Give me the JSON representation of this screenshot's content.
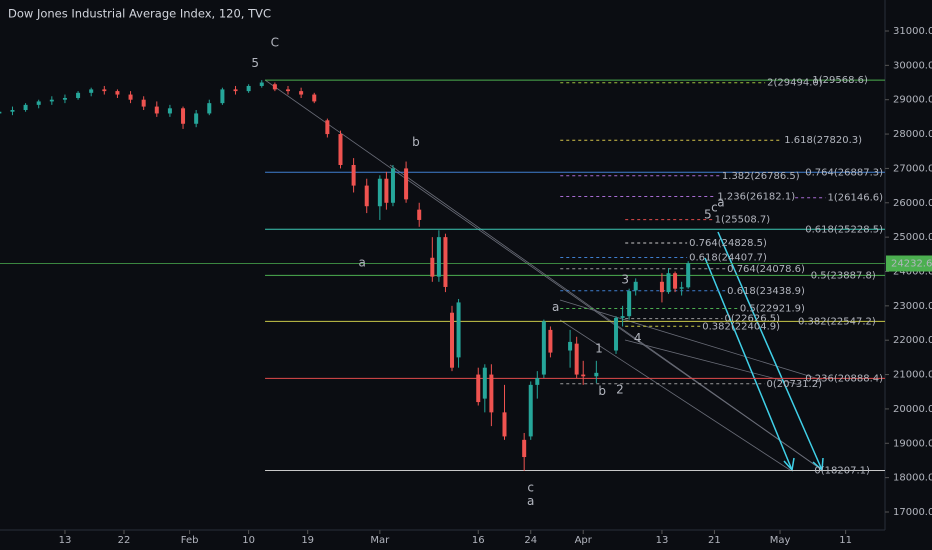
{
  "chart_data": {
    "type": "candlestick",
    "title": "Dow Jones Industrial Average Index, 120, TVC",
    "x": [
      3,
      5,
      7,
      9,
      11,
      13,
      15,
      17,
      19,
      21,
      23,
      25,
      27,
      29,
      31,
      33,
      35,
      37,
      39,
      41,
      43,
      45,
      47,
      49,
      51,
      53,
      55,
      57,
      59,
      61,
      62,
      63,
      65,
      67,
      69,
      70,
      71,
      72,
      73,
      76,
      77,
      78,
      80,
      83,
      84,
      85,
      86,
      87,
      90,
      91,
      92,
      94,
      97,
      98,
      99,
      100,
      104,
      105,
      106,
      107,
      108
    ],
    "open": [
      28600,
      28650,
      28700,
      28850,
      28950,
      29000,
      29050,
      29200,
      29300,
      29250,
      29150,
      29000,
      28800,
      28600,
      28750,
      28300,
      28600,
      28900,
      29300,
      29250,
      29400,
      29450,
      29300,
      29250,
      29150,
      28400,
      28000,
      27100,
      26500,
      25900,
      26700,
      26000,
      27000,
      25800,
      24400,
      23850,
      25000,
      22800,
      21500,
      21000,
      20300,
      21000,
      19900,
      19100,
      19200,
      20700,
      21000,
      22300,
      21700,
      21900,
      21000,
      20950,
      21700,
      22650,
      22700,
      23450,
      23700,
      23400,
      23950,
      23500,
      23540
    ],
    "high": [
      28750,
      28800,
      28900,
      29000,
      29100,
      29150,
      29250,
      29350,
      29400,
      29300,
      29250,
      29100,
      28950,
      28850,
      28800,
      28700,
      29000,
      29350,
      29400,
      29450,
      29570,
      29500,
      29400,
      29350,
      29200,
      28450,
      28100,
      27300,
      26700,
      26800,
      26900,
      27100,
      27200,
      26000,
      25000,
      25200,
      25100,
      23000,
      23200,
      21200,
      21300,
      21300,
      20700,
      19300,
      20800,
      21100,
      22600,
      22400,
      22300,
      22100,
      21400,
      21400,
      22700,
      23000,
      23500,
      23800,
      23950,
      24100,
      24000,
      23700,
      24300
    ],
    "low": [
      28500,
      28550,
      28650,
      28750,
      28850,
      28900,
      29000,
      29100,
      29150,
      29050,
      28900,
      28700,
      28500,
      28500,
      28150,
      28200,
      28550,
      28850,
      29150,
      29200,
      29350,
      29250,
      29150,
      29050,
      28900,
      27900,
      27000,
      26300,
      25700,
      25500,
      25800,
      25900,
      26000,
      25300,
      23700,
      23700,
      23400,
      21100,
      21200,
      20100,
      19900,
      19500,
      19100,
      18200,
      19100,
      20300,
      20900,
      21500,
      21200,
      20900,
      20700,
      20750,
      21600,
      22400,
      22600,
      23300,
      23100,
      23350,
      23400,
      23300,
      23500
    ],
    "close": [
      28650,
      28700,
      28850,
      28950,
      29000,
      29050,
      29200,
      29300,
      29250,
      29150,
      29000,
      28800,
      28600,
      28750,
      28300,
      28600,
      28900,
      29300,
      29250,
      29400,
      29500,
      29300,
      29250,
      29150,
      28950,
      28000,
      27100,
      26500,
      25900,
      26700,
      26000,
      27000,
      26100,
      25500,
      23850,
      25000,
      23550,
      21200,
      23100,
      20200,
      21200,
      19900,
      19200,
      18600,
      20700,
      20900,
      22550,
      21640,
      21950,
      21000,
      20950,
      21050,
      22650,
      22700,
      23430,
      23700,
      23400,
      23950,
      23500,
      23540,
      24240
    ],
    "up_color": "#26a69a",
    "down_color": "#ef5350",
    "xlim": [
      3.1,
      138
    ],
    "ylim": [
      16476,
      31902
    ],
    "xticks": [
      13,
      22,
      {
        "value": 32,
        "label": "Feb"
      },
      {
        "value": 41,
        "label": "10"
      },
      {
        "value": 50,
        "label": "19"
      },
      {
        "value": 61,
        "label": "Mar"
      },
      {
        "value": 76,
        "label": "16"
      },
      {
        "value": 84,
        "label": "24"
      },
      {
        "value": 92,
        "label": "Apr"
      },
      {
        "value": 104,
        "label": "13"
      },
      {
        "value": 112,
        "label": "21"
      },
      {
        "value": 122,
        "label": "May"
      },
      {
        "value": 132,
        "label": "11"
      }
    ],
    "yticks": [
      {
        "value": 17000,
        "label": "17000.0"
      },
      {
        "value": 18000,
        "label": "18000.0"
      },
      {
        "value": 19000,
        "label": "19000.0"
      },
      {
        "value": 20000,
        "label": "20000.0"
      },
      {
        "value": 21000,
        "label": "21000.0"
      },
      {
        "value": 22000,
        "label": "22000.0"
      },
      {
        "value": 23000,
        "label": "23000.0"
      },
      {
        "value": 24000,
        "label": "24000.0"
      },
      {
        "value": 25000,
        "label": "25000.0"
      },
      {
        "value": 26000,
        "label": "26000.0"
      },
      {
        "value": 27000,
        "label": "27000.0"
      },
      {
        "value": 28000,
        "label": "28000.0"
      },
      {
        "value": 29000,
        "label": "29000.0"
      },
      {
        "value": 30000,
        "label": "30000.0"
      },
      {
        "value": 31000,
        "label": "31000.0"
      }
    ],
    "grid": false,
    "last_price": 24232.6,
    "last_price_color": "#4caf50",
    "levels": [
      {
        "label": "1(29568.6)",
        "value": 29568.6,
        "color": "#4caf50",
        "style": "solid",
        "x_start": 43.5,
        "x_end": 135.4
      },
      {
        "label": "2(29494.0)",
        "value": 29494.0,
        "color": "#9bbf3c",
        "style": "dashed",
        "x_start": 88.5,
        "x_end": 128.5
      },
      {
        "label": "1.618(27820.3)",
        "value": 27820.3,
        "color": "#d4c44a",
        "style": "dashed",
        "x_start": 88.5,
        "x_end": 134.5
      },
      {
        "label": "0.764(26887.3)",
        "value": 26887.3,
        "color": "#3f7fd0",
        "style": "solid",
        "x_start": 43.5,
        "x_end": 137.7
      },
      {
        "label": "1.382(26786.5)",
        "value": 26786.5,
        "color": "#a66bd1",
        "style": "dashed",
        "x_start": 88.5,
        "x_end": 125
      },
      {
        "label": "1.236(26182.1)",
        "value": 26182.1,
        "color": "#a66bd1",
        "style": "dashed",
        "x_start": 88.5,
        "x_end": 124.3
      },
      {
        "label": "1(26146.6)",
        "value": 26146.6,
        "color": "#a66bd1",
        "style": "dashed",
        "x_start": 124.3,
        "x_end": 137.7
      },
      {
        "label": "1(25508.7)",
        "value": 25508.7,
        "color": "#e04b4b",
        "style": "dashed",
        "x_start": 98.4,
        "x_end": 120.5
      },
      {
        "label": "0.618(25228.5)",
        "value": 25228.5,
        "color": "#3cc8b4",
        "style": "solid",
        "x_start": 43.5,
        "x_end": 137.7
      },
      {
        "label": "0.764(24828.5)",
        "value": 24828.5,
        "color": "#c8c8c8",
        "style": "dashed",
        "x_start": 98.4,
        "x_end": 120
      },
      {
        "label": "0.618(24407.7)",
        "value": 24407.7,
        "color": "#3f7fd0",
        "style": "dashed",
        "x_start": 88.5,
        "x_end": 120
      },
      {
        "label": "0.764(24078.6)",
        "value": 24078.6,
        "color": "#9a9a9a",
        "style": "dashed",
        "x_start": 88.5,
        "x_end": 125.8
      },
      {
        "label": "0.5(23887.8)",
        "value": 23887.8,
        "color": "#4caf50",
        "style": "solid",
        "x_start": 43.5,
        "x_end": 136.6
      },
      {
        "label": "0.618(23438.9)",
        "value": 23438.9,
        "color": "#3f7fd0",
        "style": "dashed",
        "x_start": 88.5,
        "x_end": 125.8
      },
      {
        "label": "0.5(22921.9)",
        "value": 22921.9,
        "color": "#4caf50",
        "style": "dashed",
        "x_start": 88.5,
        "x_end": 125.8
      },
      {
        "label": "0(22626.5)",
        "value": 22626.5,
        "color": "#9a9a9a",
        "style": "dashed",
        "x_start": 98.4,
        "x_end": 122
      },
      {
        "label": "0.382(22547.2)",
        "value": 22547.2,
        "color": "#c8c84a",
        "style": "solid",
        "x_start": 43.5,
        "x_end": 136.6
      },
      {
        "label": "0.382(22404.9)",
        "value": 22404.9,
        "color": "#c8c84a",
        "style": "dashed",
        "x_start": 98.4,
        "x_end": 122
      },
      {
        "label": "0.236(20888.4)",
        "value": 20888.4,
        "color": "#e04b4b",
        "style": "solid",
        "x_start": 43.5,
        "x_end": 137.7
      },
      {
        "label": "0(20731.2)",
        "value": 20731.2,
        "color": "#9a9a9a",
        "style": "dashed",
        "x_start": 88.5,
        "x_end": 128.4
      },
      {
        "label": "0(18207.1)",
        "value": 18207.1,
        "color": "#c8c8c8",
        "style": "solid",
        "x_start": 43.5,
        "x_end": 135.7
      }
    ],
    "waves": [
      {
        "text": "C",
        "x": 45,
        "y": 30650,
        "color": "#3cc8e0"
      },
      {
        "text": "5",
        "x": 42,
        "y": 30050,
        "color": "#4caf50"
      },
      {
        "text": "b",
        "x": 66.5,
        "y": 27750,
        "color": "#4caf50"
      },
      {
        "text": "a",
        "x": 58.3,
        "y": 24250,
        "color": "#4caf50"
      },
      {
        "text": "c",
        "x": 84,
        "y": 17700,
        "color": "#4caf50"
      },
      {
        "text": "a",
        "x": 84,
        "y": 17300,
        "color": "#3cc8e0"
      },
      {
        "text": "a",
        "x": 87.8,
        "y": 22950,
        "color": "#e8e04a"
      },
      {
        "text": "b",
        "x": 94.9,
        "y": 20500,
        "color": "#e8e04a"
      },
      {
        "text": "1",
        "x": 94.4,
        "y": 21750,
        "color": "#f0a030"
      },
      {
        "text": "2",
        "x": 97.6,
        "y": 20550,
        "color": "#f0a030"
      },
      {
        "text": "3",
        "x": 98.4,
        "y": 23750,
        "color": "#f0a030"
      },
      {
        "text": "4",
        "x": 100.3,
        "y": 22050,
        "color": "#f0a030"
      },
      {
        "text": "5",
        "x": 111,
        "y": 25650,
        "color": "#f0a030"
      },
      {
        "text": "c",
        "x": 112,
        "y": 25850,
        "color": "#e8e04a"
      },
      {
        "text": "a",
        "x": 113,
        "y": 26000,
        "color": "#4caf50"
      }
    ]
  }
}
